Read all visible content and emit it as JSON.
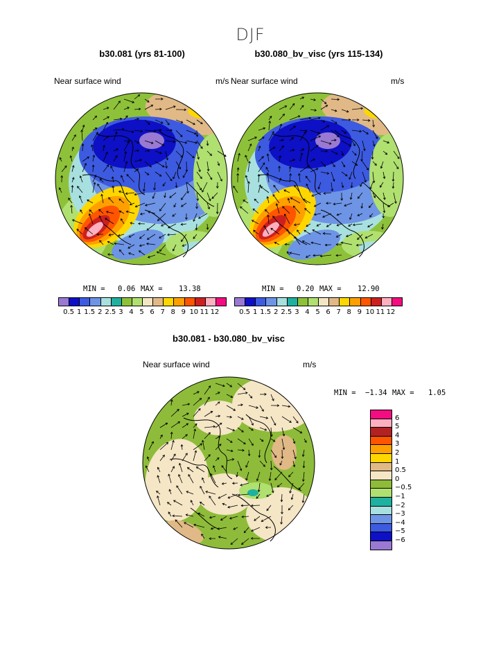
{
  "season": "DJF",
  "colors": {
    "abs_scale": [
      "#9a79d3",
      "#0d10c4",
      "#3d5be0",
      "#6e94e6",
      "#a8e0e0",
      "#20b0a0",
      "#8ec13a",
      "#b0e070",
      "#f2e6c4",
      "#e1b986",
      "#fcd800",
      "#ffa000",
      "#ff5500",
      "#cc2020",
      "#ffb0c0",
      "#f20d80"
    ],
    "diff_scale": [
      "#f20d80",
      "#ffb0c0",
      "#b22222",
      "#ff5500",
      "#ffa000",
      "#ffd700",
      "#e1b986",
      "#f5e6c6",
      "#8ebc3a",
      "#b0e070",
      "#20b0a0",
      "#a8e0e0",
      "#6e94e6",
      "#3d5be0",
      "#0d10c4",
      "#9a79d3"
    ]
  },
  "panels": [
    {
      "title": "b30.081 (yrs 81-100)",
      "left_label": "Near surface wind",
      "right_label": "m/s",
      "min_label": "MIN =",
      "min": "0.06",
      "max_label": "MAX =",
      "max": "13.38",
      "tick_labels": [
        "0.5",
        "1",
        "1.5",
        "2",
        "2.5",
        "3",
        "4",
        "5",
        "6",
        "7",
        "8",
        "9",
        "10",
        "11",
        "12"
      ]
    },
    {
      "title": "b30.080_bv_visc (yrs 115-134)",
      "left_label": "Near surface wind",
      "right_label": "m/s",
      "min_label": "MIN =",
      "min": "0.20",
      "max_label": "MAX =",
      "max": "12.90",
      "tick_labels": [
        "0.5",
        "1",
        "1.5",
        "2",
        "2.5",
        "3",
        "4",
        "5",
        "6",
        "7",
        "8",
        "9",
        "10",
        "11",
        "12"
      ]
    },
    {
      "title": "b30.081 - b30.080_bv_visc",
      "left_label": "Near surface wind",
      "right_label": "m/s",
      "min_label": "MIN =",
      "min": "−1.34",
      "max_label": "MAX =",
      "max": "1.05",
      "tick_labels": [
        "6",
        "5",
        "4",
        "3",
        "2",
        "1",
        "0.5",
        "0",
        "−0.5",
        "−1",
        "−2",
        "−3",
        "−4",
        "−5",
        "−6"
      ]
    }
  ],
  "chart_data": [
    {
      "type": "heatmap",
      "title": "b30.081 (yrs 81-100)",
      "subtitle": "Near surface wind",
      "units": "m/s",
      "projection": "polar stereographic (north)",
      "levels": [
        0.5,
        1,
        1.5,
        2,
        2.5,
        3,
        4,
        5,
        6,
        7,
        8,
        9,
        10,
        11,
        12
      ],
      "min": 0.06,
      "max": 13.38
    },
    {
      "type": "heatmap",
      "title": "b30.080_bv_visc (yrs 115-134)",
      "subtitle": "Near surface wind",
      "units": "m/s",
      "projection": "polar stereographic (north)",
      "levels": [
        0.5,
        1,
        1.5,
        2,
        2.5,
        3,
        4,
        5,
        6,
        7,
        8,
        9,
        10,
        11,
        12
      ],
      "min": 0.2,
      "max": 12.9
    },
    {
      "type": "heatmap",
      "title": "b30.081 - b30.080_bv_visc",
      "subtitle": "Near surface wind",
      "units": "m/s",
      "projection": "polar stereographic (north)",
      "levels": [
        6,
        5,
        4,
        3,
        2,
        1,
        0.5,
        0,
        -0.5,
        -1,
        -2,
        -3,
        -4,
        -5,
        -6
      ],
      "min": -1.34,
      "max": 1.05
    }
  ]
}
